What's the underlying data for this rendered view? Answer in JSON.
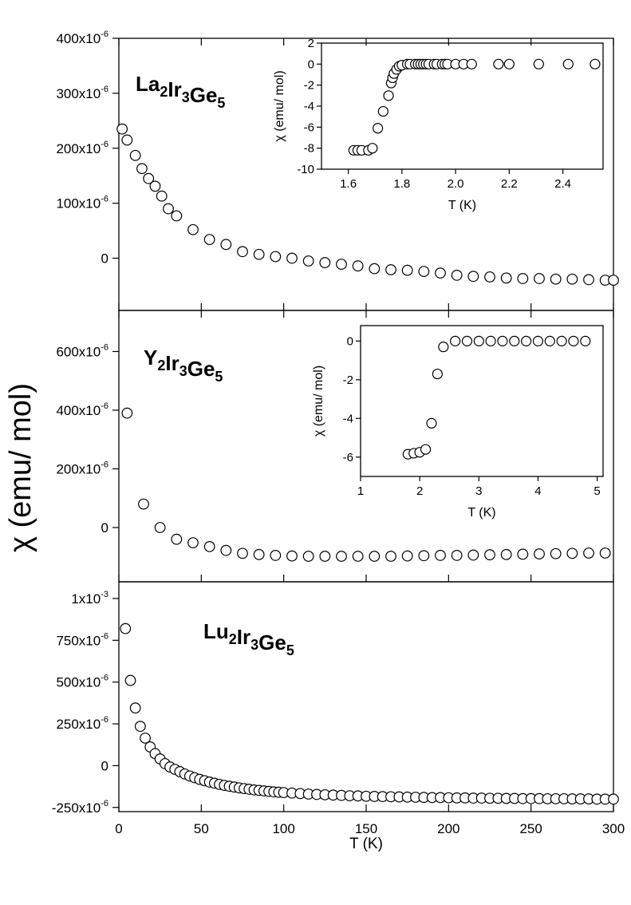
{
  "figure": {
    "ylabel": "χ (emu/ mol)",
    "xlabel": "T (K)"
  },
  "chart_data": [
    {
      "type": "scatter",
      "compound": {
        "base": [
          "La",
          "Ir",
          "Ge"
        ],
        "subs": [
          "2",
          "3",
          "5"
        ]
      },
      "xlim": [
        0,
        300
      ],
      "ylim": [
        -9.5e-05,
        0.0004
      ],
      "y_ticks": [
        0,
        0.0001,
        0.0002,
        0.0003,
        0.0004
      ],
      "y_tick_labels": [
        "0",
        "100x10-6",
        "200x10-6",
        "300x10-6",
        "400x10-6"
      ],
      "x": [
        2,
        5,
        10,
        14,
        18,
        22,
        26,
        30,
        35,
        45,
        55,
        65,
        75,
        85,
        95,
        105,
        115,
        125,
        135,
        145,
        155,
        165,
        175,
        185,
        195,
        205,
        215,
        225,
        235,
        245,
        255,
        265,
        275,
        285,
        295,
        300
      ],
      "y": [
        0.000235,
        0.000215,
        0.000187,
        0.000163,
        0.000145,
        0.000131,
        0.000113,
        9e-05,
        7.7e-05,
        5.2e-05,
        3.4e-05,
        2.5e-05,
        1.2e-05,
        7e-06,
        3e-06,
        0,
        -5e-06,
        -8e-06,
        -1.1e-05,
        -1.4e-05,
        -1.9e-05,
        -2.1e-05,
        -2.2e-05,
        -2.4e-05,
        -2.7e-05,
        -3.1e-05,
        -3.3e-05,
        -3.4e-05,
        -3.6e-05,
        -3.7e-05,
        -3.7e-05,
        -3.8e-05,
        -3.8e-05,
        -3.9e-05,
        -4e-05,
        -4e-05
      ],
      "inset": {
        "xlabel": "T (K)",
        "ylabel": "χ (emu/ mol)",
        "xlim": [
          1.5,
          2.55
        ],
        "ylim": [
          -10,
          2
        ],
        "x_ticks": [
          1.6,
          1.8,
          2.0,
          2.2,
          2.4
        ],
        "x_tick_labels": [
          "1.6",
          "1.8",
          "2.0",
          "2.2",
          "2.4"
        ],
        "y_ticks": [
          -10,
          -8,
          -6,
          -4,
          -2,
          0,
          2
        ],
        "y_tick_labels": [
          "-10",
          "-8",
          "-6",
          "-4",
          "-2",
          "0",
          "2"
        ],
        "x": [
          1.62,
          1.635,
          1.65,
          1.675,
          1.69,
          1.71,
          1.73,
          1.75,
          1.76,
          1.765,
          1.77,
          1.78,
          1.79,
          1.8,
          1.82,
          1.83,
          1.85,
          1.86,
          1.87,
          1.88,
          1.89,
          1.9,
          1.92,
          1.93,
          1.95,
          1.96,
          1.97,
          2.0,
          2.03,
          2.06,
          2.16,
          2.2,
          2.31,
          2.42,
          2.52
        ],
        "y": [
          -8.2,
          -8.2,
          -8.2,
          -8.2,
          -8.0,
          -6.1,
          -4.5,
          -3.0,
          -1.8,
          -1.3,
          -0.9,
          -0.5,
          -0.2,
          -0.1,
          0,
          0,
          0,
          0,
          0,
          0,
          0,
          0,
          0,
          0,
          0,
          0,
          0,
          0,
          0,
          0,
          0,
          0,
          0,
          0,
          0
        ]
      }
    },
    {
      "type": "scatter",
      "compound": {
        "base": [
          "Y",
          "Ir",
          "Ge"
        ],
        "subs": [
          "2",
          "3",
          "5"
        ]
      },
      "xlim": [
        0,
        300
      ],
      "ylim": [
        -0.000185,
        0.00074
      ],
      "y_ticks": [
        0,
        0.0002,
        0.0004,
        0.0006
      ],
      "y_tick_labels": [
        "0",
        "200x10-6",
        "400x10-6",
        "600x10-6"
      ],
      "x": [
        5,
        15,
        25,
        35,
        45,
        55,
        65,
        75,
        85,
        95,
        105,
        115,
        125,
        135,
        145,
        155,
        165,
        175,
        185,
        195,
        205,
        215,
        225,
        235,
        245,
        255,
        265,
        275,
        285,
        295
      ],
      "y": [
        0.00039,
        8e-05,
        0,
        -4e-05,
        -5.2e-05,
        -6.5e-05,
        -7.8e-05,
        -8.8e-05,
        -9.2e-05,
        -9.5e-05,
        -9.7e-05,
        -9.8e-05,
        -9.8e-05,
        -9.8e-05,
        -9.8e-05,
        -9.8e-05,
        -9.8e-05,
        -9.7e-05,
        -9.6e-05,
        -9.5e-05,
        -9.5e-05,
        -9.4e-05,
        -9.3e-05,
        -9.2e-05,
        -9.1e-05,
        -9e-05,
        -8.9e-05,
        -8.8e-05,
        -8.7e-05,
        -8.7e-05
      ],
      "inset": {
        "xlabel": "T (K)",
        "ylabel": "χ (emu/ mol)",
        "xlim": [
          1,
          5.1
        ],
        "ylim": [
          -7,
          0.8
        ],
        "x_ticks": [
          1,
          2,
          3,
          4,
          5
        ],
        "x_tick_labels": [
          "1",
          "2",
          "3",
          "4",
          "5"
        ],
        "y_ticks": [
          -6,
          -4,
          -2,
          0
        ],
        "y_tick_labels": [
          "-6",
          "-4",
          "-2",
          "0"
        ],
        "x": [
          1.8,
          1.9,
          2.0,
          2.1,
          2.2,
          2.3,
          2.4,
          2.6,
          2.8,
          3.0,
          3.2,
          3.4,
          3.6,
          3.8,
          4.0,
          4.2,
          4.4,
          4.6,
          4.8
        ],
        "y": [
          -5.85,
          -5.8,
          -5.75,
          -5.6,
          -4.25,
          -1.7,
          -0.3,
          0,
          0,
          0,
          0,
          0,
          0,
          0,
          0,
          0,
          0,
          0,
          0
        ]
      }
    },
    {
      "type": "scatter",
      "compound": {
        "base": [
          "Lu",
          "Ir",
          "Ge"
        ],
        "subs": [
          "2",
          "3",
          "5"
        ]
      },
      "xlim": [
        0,
        300
      ],
      "ylim": [
        -0.000275,
        0.0011
      ],
      "y_ticks": [
        -0.00025,
        0,
        0.00025,
        0.0005,
        0.00075,
        0.001
      ],
      "y_tick_labels": [
        "-250x10-6",
        "0",
        "250x10-6",
        "500x10-6",
        "750x10-6",
        "1x10-3"
      ],
      "x": [
        4,
        7,
        10,
        13,
        16,
        19,
        22,
        25,
        28,
        31,
        34,
        37,
        40,
        43,
        46,
        49,
        52,
        55,
        58,
        61,
        64,
        67,
        70,
        73,
        76,
        79,
        82,
        85,
        88,
        91,
        94,
        97,
        100,
        105,
        110,
        115,
        120,
        125,
        130,
        135,
        140,
        145,
        150,
        155,
        160,
        165,
        170,
        175,
        180,
        185,
        190,
        195,
        200,
        205,
        210,
        215,
        220,
        225,
        230,
        235,
        240,
        245,
        250,
        255,
        260,
        265,
        270,
        275,
        280,
        285,
        290,
        295,
        300
      ],
      "y": [
        0.00082,
        0.00051,
        0.000345,
        0.000235,
        0.000165,
        0.000112,
        7.2e-05,
        4e-05,
        1.2e-05,
        -8e-06,
        -2.2e-05,
        -3.6e-05,
        -5e-05,
        -6.2e-05,
        -7.2e-05,
        -8.2e-05,
        -9e-05,
        -9.8e-05,
        -0.000105,
        -0.000112,
        -0.000118,
        -0.000123,
        -0.000128,
        -0.000133,
        -0.000137,
        -0.000141,
        -0.000145,
        -0.000148,
        -0.000151,
        -0.000154,
        -0.000157,
        -0.000159,
        -0.000161,
        -0.000164,
        -0.000167,
        -0.00017,
        -0.000172,
        -0.000174,
        -0.000176,
        -0.000178,
        -0.00018,
        -0.000181,
        -0.000183,
        -0.000184,
        -0.000185,
        -0.000186,
        -0.000187,
        -0.000188,
        -0.000189,
        -0.00019,
        -0.000191,
        -0.000191,
        -0.000192,
        -0.000193,
        -0.000193,
        -0.000194,
        -0.000194,
        -0.000195,
        -0.000195,
        -0.000196,
        -0.000196,
        -0.000197,
        -0.000197,
        -0.000197,
        -0.000198,
        -0.000198,
        -0.000198,
        -0.000199,
        -0.000199,
        -0.000199,
        -0.0002,
        -0.0002,
        -0.0002
      ]
    }
  ],
  "x_axis": {
    "ticks": [
      0,
      50,
      100,
      150,
      200,
      250,
      300
    ],
    "tick_labels": [
      "0",
      "50",
      "100",
      "150",
      "200",
      "250",
      "300"
    ]
  }
}
